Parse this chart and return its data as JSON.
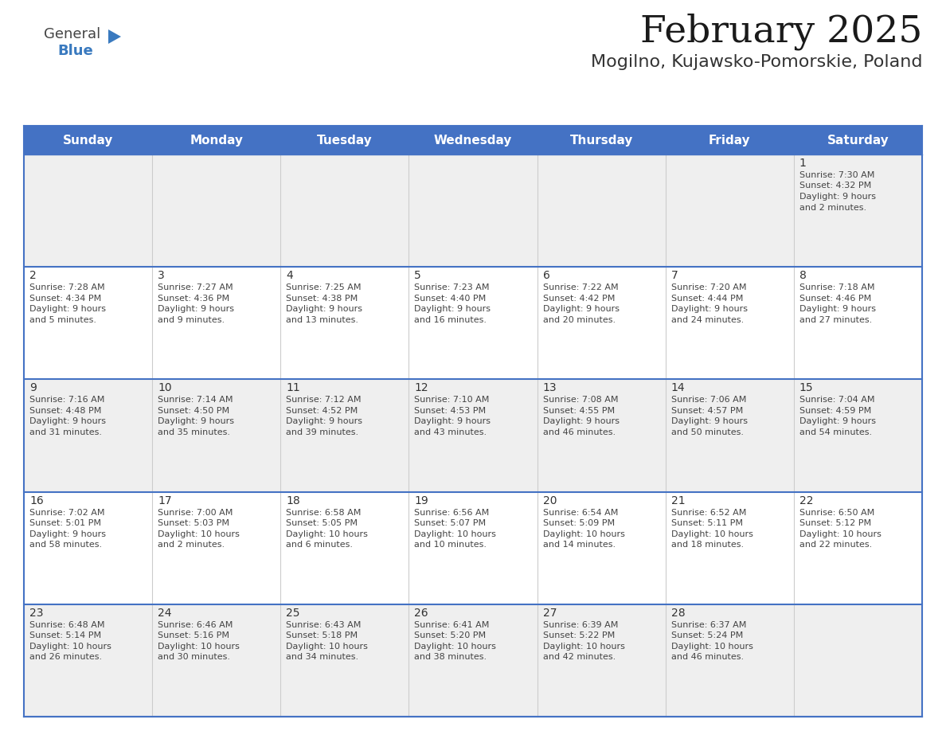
{
  "title": "February 2025",
  "subtitle": "Mogilno, Kujawsko-Pomorskie, Poland",
  "header_color": "#4472C4",
  "header_text_color": "#FFFFFF",
  "weekdays": [
    "Sunday",
    "Monday",
    "Tuesday",
    "Wednesday",
    "Thursday",
    "Friday",
    "Saturday"
  ],
  "bg_color": "#FFFFFF",
  "cell_bg_row0": "#EFEFEF",
  "cell_bg_row1": "#FFFFFF",
  "cell_bg_row2": "#EFEFEF",
  "cell_bg_row3": "#FFFFFF",
  "cell_bg_row4": "#EFEFEF",
  "grid_line_color": "#4472C4",
  "cell_divider_color": "#C0C0C0",
  "day_number_color": "#333333",
  "text_color": "#444444",
  "title_color": "#1a1a1a",
  "subtitle_color": "#333333",
  "logo_general_color": "#555555",
  "logo_blue_color": "#3a7abf",
  "calendar_data": [
    [
      null,
      null,
      null,
      null,
      null,
      null,
      {
        "day": 1,
        "sunrise": "7:30 AM",
        "sunset": "4:32 PM",
        "daylight_line1": "9 hours",
        "daylight_line2": "and 2 minutes."
      }
    ],
    [
      {
        "day": 2,
        "sunrise": "7:28 AM",
        "sunset": "4:34 PM",
        "daylight_line1": "9 hours",
        "daylight_line2": "and 5 minutes."
      },
      {
        "day": 3,
        "sunrise": "7:27 AM",
        "sunset": "4:36 PM",
        "daylight_line1": "9 hours",
        "daylight_line2": "and 9 minutes."
      },
      {
        "day": 4,
        "sunrise": "7:25 AM",
        "sunset": "4:38 PM",
        "daylight_line1": "9 hours",
        "daylight_line2": "and 13 minutes."
      },
      {
        "day": 5,
        "sunrise": "7:23 AM",
        "sunset": "4:40 PM",
        "daylight_line1": "9 hours",
        "daylight_line2": "and 16 minutes."
      },
      {
        "day": 6,
        "sunrise": "7:22 AM",
        "sunset": "4:42 PM",
        "daylight_line1": "9 hours",
        "daylight_line2": "and 20 minutes."
      },
      {
        "day": 7,
        "sunrise": "7:20 AM",
        "sunset": "4:44 PM",
        "daylight_line1": "9 hours",
        "daylight_line2": "and 24 minutes."
      },
      {
        "day": 8,
        "sunrise": "7:18 AM",
        "sunset": "4:46 PM",
        "daylight_line1": "9 hours",
        "daylight_line2": "and 27 minutes."
      }
    ],
    [
      {
        "day": 9,
        "sunrise": "7:16 AM",
        "sunset": "4:48 PM",
        "daylight_line1": "9 hours",
        "daylight_line2": "and 31 minutes."
      },
      {
        "day": 10,
        "sunrise": "7:14 AM",
        "sunset": "4:50 PM",
        "daylight_line1": "9 hours",
        "daylight_line2": "and 35 minutes."
      },
      {
        "day": 11,
        "sunrise": "7:12 AM",
        "sunset": "4:52 PM",
        "daylight_line1": "9 hours",
        "daylight_line2": "and 39 minutes."
      },
      {
        "day": 12,
        "sunrise": "7:10 AM",
        "sunset": "4:53 PM",
        "daylight_line1": "9 hours",
        "daylight_line2": "and 43 minutes."
      },
      {
        "day": 13,
        "sunrise": "7:08 AM",
        "sunset": "4:55 PM",
        "daylight_line1": "9 hours",
        "daylight_line2": "and 46 minutes."
      },
      {
        "day": 14,
        "sunrise": "7:06 AM",
        "sunset": "4:57 PM",
        "daylight_line1": "9 hours",
        "daylight_line2": "and 50 minutes."
      },
      {
        "day": 15,
        "sunrise": "7:04 AM",
        "sunset": "4:59 PM",
        "daylight_line1": "9 hours",
        "daylight_line2": "and 54 minutes."
      }
    ],
    [
      {
        "day": 16,
        "sunrise": "7:02 AM",
        "sunset": "5:01 PM",
        "daylight_line1": "9 hours",
        "daylight_line2": "and 58 minutes."
      },
      {
        "day": 17,
        "sunrise": "7:00 AM",
        "sunset": "5:03 PM",
        "daylight_line1": "10 hours",
        "daylight_line2": "and 2 minutes."
      },
      {
        "day": 18,
        "sunrise": "6:58 AM",
        "sunset": "5:05 PM",
        "daylight_line1": "10 hours",
        "daylight_line2": "and 6 minutes."
      },
      {
        "day": 19,
        "sunrise": "6:56 AM",
        "sunset": "5:07 PM",
        "daylight_line1": "10 hours",
        "daylight_line2": "and 10 minutes."
      },
      {
        "day": 20,
        "sunrise": "6:54 AM",
        "sunset": "5:09 PM",
        "daylight_line1": "10 hours",
        "daylight_line2": "and 14 minutes."
      },
      {
        "day": 21,
        "sunrise": "6:52 AM",
        "sunset": "5:11 PM",
        "daylight_line1": "10 hours",
        "daylight_line2": "and 18 minutes."
      },
      {
        "day": 22,
        "sunrise": "6:50 AM",
        "sunset": "5:12 PM",
        "daylight_line1": "10 hours",
        "daylight_line2": "and 22 minutes."
      }
    ],
    [
      {
        "day": 23,
        "sunrise": "6:48 AM",
        "sunset": "5:14 PM",
        "daylight_line1": "10 hours",
        "daylight_line2": "and 26 minutes."
      },
      {
        "day": 24,
        "sunrise": "6:46 AM",
        "sunset": "5:16 PM",
        "daylight_line1": "10 hours",
        "daylight_line2": "and 30 minutes."
      },
      {
        "day": 25,
        "sunrise": "6:43 AM",
        "sunset": "5:18 PM",
        "daylight_line1": "10 hours",
        "daylight_line2": "and 34 minutes."
      },
      {
        "day": 26,
        "sunrise": "6:41 AM",
        "sunset": "5:20 PM",
        "daylight_line1": "10 hours",
        "daylight_line2": "and 38 minutes."
      },
      {
        "day": 27,
        "sunrise": "6:39 AM",
        "sunset": "5:22 PM",
        "daylight_line1": "10 hours",
        "daylight_line2": "and 42 minutes."
      },
      {
        "day": 28,
        "sunrise": "6:37 AM",
        "sunset": "5:24 PM",
        "daylight_line1": "10 hours",
        "daylight_line2": "and 46 minutes."
      },
      null
    ]
  ],
  "row_bg_colors": [
    "#EFEFEF",
    "#FFFFFF",
    "#EFEFEF",
    "#FFFFFF",
    "#EFEFEF"
  ]
}
